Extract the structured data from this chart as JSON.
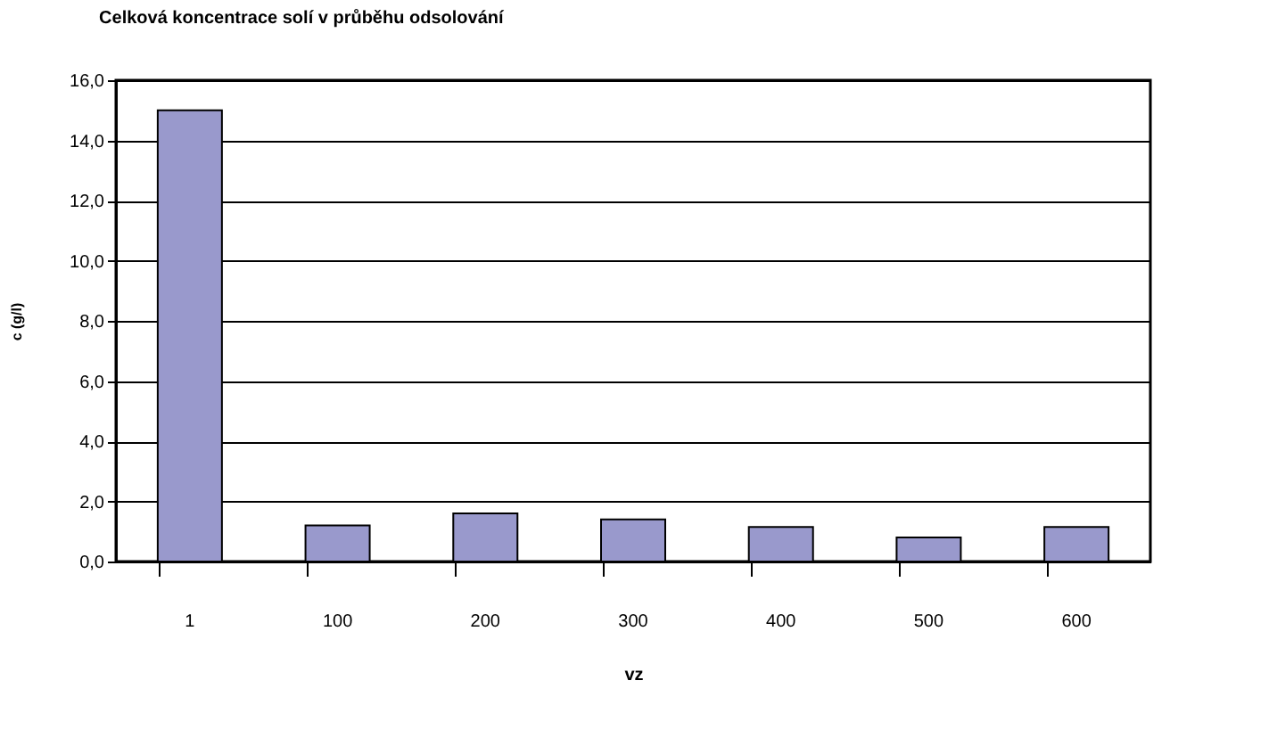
{
  "chart_data": {
    "type": "bar",
    "title": "Celková koncentrace solí v průběhu odsolování",
    "xlabel": "vz",
    "ylabel": "c (g/l)",
    "categories": [
      "1",
      "100",
      "200",
      "300",
      "400",
      "500",
      "600"
    ],
    "values": [
      15.0,
      1.2,
      1.6,
      1.4,
      1.15,
      0.8,
      1.15
    ],
    "color": "#9999cc",
    "ylim": [
      0,
      16
    ],
    "yticks": [
      {
        "value": 0,
        "label": "0,0"
      },
      {
        "value": 2,
        "label": "2,0"
      },
      {
        "value": 4,
        "label": "4,0"
      },
      {
        "value": 6,
        "label": "6,0"
      },
      {
        "value": 8,
        "label": "8,0"
      },
      {
        "value": 10,
        "label": "10,0"
      },
      {
        "value": 12,
        "label": "12,0"
      },
      {
        "value": 14,
        "label": "14,0"
      },
      {
        "value": 16,
        "label": "16,0"
      }
    ],
    "grid": "y"
  }
}
